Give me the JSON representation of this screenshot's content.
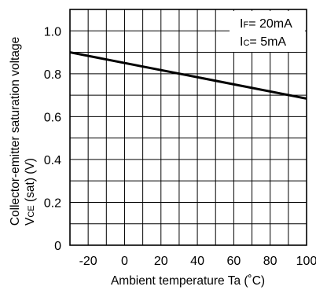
{
  "chart_data": {
    "type": "line",
    "xlabel": "Ambient temperature Ta (˚C)",
    "ylabel": {
      "line1": "Collector-emitter saturation voltage",
      "symbol_main": "V",
      "symbol_sub": "CE",
      "symbol_rest": " (sat) (V)"
    },
    "xlim": [
      -30,
      100
    ],
    "ylim": [
      0,
      1.1
    ],
    "x_ticks": [
      -20,
      0,
      20,
      40,
      60,
      80,
      100
    ],
    "x_tick_labels": [
      "-20",
      "0",
      "20",
      "40",
      "60",
      "80",
      "100"
    ],
    "y_ticks": [
      0,
      0.2,
      0.4,
      0.6,
      0.8,
      1.0
    ],
    "y_tick_labels": [
      "0",
      "0.2",
      "0.4",
      "0.6",
      "0.8",
      "1.0"
    ],
    "grid": true,
    "series": [
      {
        "x": [
          -30,
          100
        ],
        "y": [
          0.9,
          0.684
        ],
        "color": "#000000"
      }
    ],
    "annotations": [
      {
        "main": "I",
        "sub": "F",
        "rest": "= 20mA"
      },
      {
        "main": "I",
        "sub": "C",
        "rest": "= 5mA"
      }
    ]
  }
}
